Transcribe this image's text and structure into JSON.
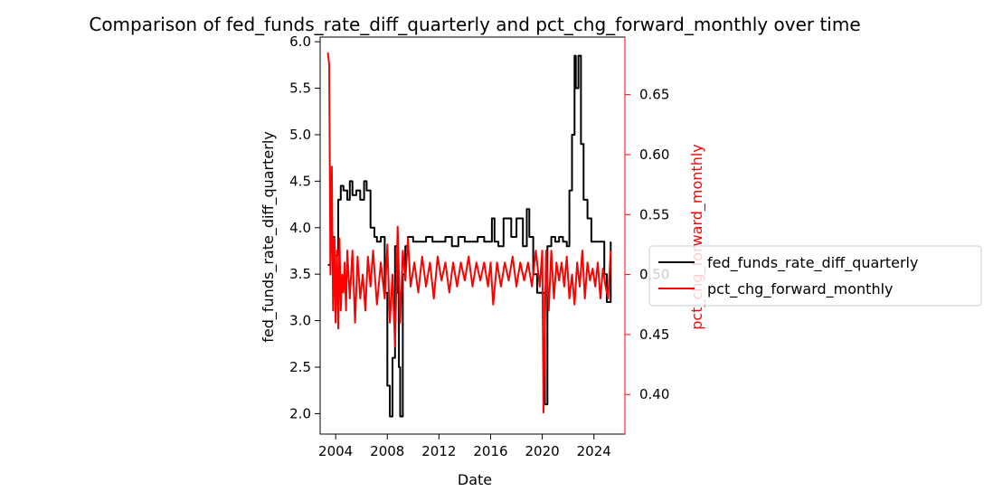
{
  "chart_data": {
    "type": "line",
    "title": "Comparison of fed_funds_rate_diff_quarterly and pct_chg_forward_monthly over time",
    "xlabel": "Date",
    "ylabel_left": "fed_funds_rate_diff_quarterly",
    "ylabel_right": "pct_chg_forward_monthly",
    "xlim": [
      2002.8,
      2026.4
    ],
    "ylim_left": [
      1.78,
      6.05
    ],
    "ylim_right": [
      0.367,
      0.698
    ],
    "x_ticks": [
      2004,
      2008,
      2012,
      2016,
      2020,
      2024
    ],
    "x_tick_labels": [
      "2004",
      "2008",
      "2012",
      "2016",
      "2020",
      "2024"
    ],
    "y_ticks_left": [
      2.0,
      2.5,
      3.0,
      3.5,
      4.0,
      4.5,
      5.0,
      5.5,
      6.0
    ],
    "y_tick_labels_left": [
      "2.0",
      "2.5",
      "3.0",
      "3.5",
      "4.0",
      "4.5",
      "5.0",
      "5.5",
      "6.0"
    ],
    "y_ticks_right": [
      0.4,
      0.45,
      0.5,
      0.55,
      0.6,
      0.65
    ],
    "y_tick_labels_right": [
      "0.40",
      "0.45",
      "0.50",
      "0.55",
      "0.60",
      "0.65"
    ],
    "grid": false,
    "legend": "right",
    "series": [
      {
        "name": "fed_funds_rate_diff_quarterly",
        "axis": "left",
        "color": "#000000",
        "x": [
          2003.4,
          2003.6,
          2003.7,
          2003.9,
          2004.2,
          2004.4,
          2004.6,
          2004.9,
          2005.1,
          2005.3,
          2005.6,
          2005.9,
          2006.2,
          2006.4,
          2006.7,
          2007.0,
          2007.2,
          2007.5,
          2007.8,
          2008.0,
          2008.2,
          2008.4,
          2008.6,
          2008.8,
          2008.9,
          2009.0,
          2009.2,
          2009.4,
          2009.6,
          2010.0,
          2010.5,
          2011.0,
          2011.5,
          2012.0,
          2012.5,
          2013.0,
          2013.5,
          2014.0,
          2014.5,
          2015.0,
          2015.5,
          2016.0,
          2016.1,
          2016.3,
          2016.6,
          2017.0,
          2017.3,
          2017.6,
          2018.0,
          2018.5,
          2018.8,
          2019.0,
          2019.3,
          2019.6,
          2020.0,
          2020.2,
          2020.4,
          2020.7,
          2021.0,
          2021.3,
          2021.6,
          2021.9,
          2022.1,
          2022.3,
          2022.5,
          2022.6,
          2022.8,
          2023.0,
          2023.2,
          2023.5,
          2023.8,
          2024.2,
          2024.5,
          2024.8,
          2025.0,
          2025.3
        ],
        "y": [
          3.6,
          3.85,
          3.9,
          3.7,
          4.3,
          4.45,
          4.4,
          4.3,
          4.5,
          4.35,
          4.4,
          4.3,
          4.5,
          4.4,
          4.0,
          3.9,
          3.85,
          3.9,
          3.3,
          2.3,
          1.97,
          2.6,
          3.8,
          3.3,
          2.5,
          1.97,
          3.5,
          3.8,
          3.9,
          3.85,
          3.85,
          3.9,
          3.85,
          3.85,
          3.9,
          3.8,
          3.9,
          3.85,
          3.85,
          3.9,
          3.85,
          3.85,
          4.1,
          3.85,
          3.8,
          4.1,
          4.1,
          3.9,
          4.1,
          3.8,
          4.2,
          3.9,
          3.5,
          3.3,
          3.3,
          2.1,
          3.8,
          3.9,
          3.85,
          3.9,
          3.85,
          3.8,
          4.4,
          5.0,
          5.85,
          5.5,
          5.85,
          4.9,
          4.3,
          4.1,
          3.85,
          3.85,
          3.85,
          3.5,
          3.2,
          3.85
        ]
      },
      {
        "name": "pct_chg_forward_monthly",
        "axis": "right",
        "color": "#ff0000",
        "x": [
          2003.4,
          2003.5,
          2003.6,
          2003.7,
          2003.8,
          2003.9,
          2004.0,
          2004.1,
          2004.2,
          2004.3,
          2004.4,
          2004.5,
          2004.6,
          2004.7,
          2004.8,
          2004.9,
          2005.1,
          2005.3,
          2005.5,
          2005.7,
          2005.9,
          2006.1,
          2006.3,
          2006.5,
          2006.7,
          2006.9,
          2007.2,
          2007.5,
          2007.8,
          2008.0,
          2008.2,
          2008.4,
          2008.6,
          2008.8,
          2009.0,
          2009.2,
          2009.4,
          2009.6,
          2009.8,
          2010.1,
          2010.4,
          2010.7,
          2011.0,
          2011.3,
          2011.6,
          2011.9,
          2012.2,
          2012.5,
          2012.8,
          2013.1,
          2013.4,
          2013.7,
          2014.0,
          2014.3,
          2014.6,
          2014.9,
          2015.2,
          2015.5,
          2015.8,
          2016.0,
          2016.2,
          2016.5,
          2016.8,
          2017.1,
          2017.4,
          2017.7,
          2018.0,
          2018.3,
          2018.6,
          2018.9,
          2019.2,
          2019.5,
          2019.8,
          2020.0,
          2020.1,
          2020.3,
          2020.5,
          2020.7,
          2020.9,
          2021.1,
          2021.3,
          2021.5,
          2021.7,
          2021.9,
          2022.1,
          2022.3,
          2022.5,
          2022.7,
          2022.9,
          2023.1,
          2023.3,
          2023.5,
          2023.7,
          2023.9,
          2024.1,
          2024.3,
          2024.5,
          2024.7,
          2024.9,
          2025.1,
          2025.3
        ],
        "y": [
          0.685,
          0.675,
          0.5,
          0.59,
          0.47,
          0.53,
          0.46,
          0.52,
          0.455,
          0.53,
          0.47,
          0.5,
          0.485,
          0.51,
          0.47,
          0.52,
          0.48,
          0.52,
          0.46,
          0.515,
          0.48,
          0.5,
          0.47,
          0.515,
          0.49,
          0.52,
          0.475,
          0.51,
          0.48,
          0.525,
          0.46,
          0.5,
          0.44,
          0.54,
          0.46,
          0.52,
          0.495,
          0.53,
          0.49,
          0.51,
          0.485,
          0.515,
          0.49,
          0.51,
          0.48,
          0.515,
          0.495,
          0.51,
          0.485,
          0.51,
          0.49,
          0.51,
          0.495,
          0.515,
          0.49,
          0.51,
          0.495,
          0.51,
          0.49,
          0.51,
          0.475,
          0.51,
          0.49,
          0.51,
          0.495,
          0.515,
          0.49,
          0.51,
          0.495,
          0.51,
          0.49,
          0.52,
          0.49,
          0.52,
          0.385,
          0.52,
          0.47,
          0.52,
          0.48,
          0.51,
          0.495,
          0.51,
          0.49,
          0.515,
          0.48,
          0.5,
          0.475,
          0.51,
          0.49,
          0.52,
          0.48,
          0.51,
          0.495,
          0.505,
          0.49,
          0.51,
          0.48,
          0.505,
          0.49,
          0.48,
          0.52
        ]
      }
    ]
  }
}
